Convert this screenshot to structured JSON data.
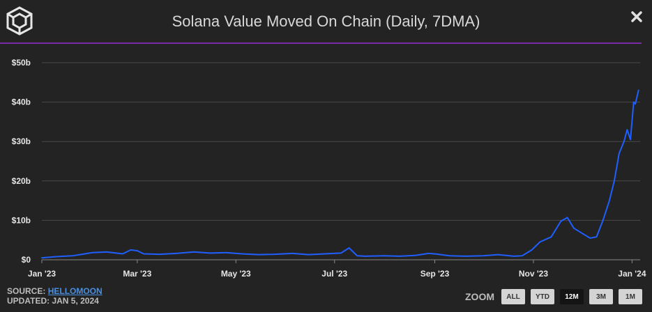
{
  "header": {
    "title": "Solana Value Moved On Chain (Daily, 7DMA)"
  },
  "footer": {
    "source_label": "SOURCE:",
    "source_link": "HELLOMOON",
    "updated": "UPDATED: JAN 5, 2024"
  },
  "zoom": {
    "label": "ZOOM",
    "buttons": [
      "ALL",
      "YTD",
      "12M",
      "3M",
      "1M"
    ],
    "active": "12M"
  },
  "colors": {
    "background": "#232323",
    "line": "#1f5fff",
    "divider": "#7a2aa5",
    "grid": "#4a4a4a"
  },
  "chart_data": {
    "type": "line",
    "title": "Solana Value Moved On Chain (Daily, 7DMA)",
    "x_ticks": [
      "Jan '23",
      "Mar '23",
      "May '23",
      "Jul '23",
      "Sep '23",
      "Nov '23",
      "Jan '24"
    ],
    "y_ticks": [
      "$0",
      "$10b",
      "$20b",
      "$30b",
      "$40b",
      "$50b"
    ],
    "ylim": [
      0,
      50
    ],
    "unit": "billions USD",
    "grid": true,
    "series": [
      {
        "x": [
          "2023-01-01",
          "2023-01-10",
          "2023-01-20",
          "2023-02-01",
          "2023-02-10",
          "2023-02-20",
          "2023-02-25",
          "2023-03-01",
          "2023-03-05",
          "2023-03-15",
          "2023-03-25",
          "2023-04-05",
          "2023-04-15",
          "2023-04-25",
          "2023-05-05",
          "2023-05-15",
          "2023-05-25",
          "2023-06-05",
          "2023-06-15",
          "2023-06-25",
          "2023-07-05",
          "2023-07-10",
          "2023-07-15",
          "2023-07-20",
          "2023-08-01",
          "2023-08-10",
          "2023-08-20",
          "2023-08-28",
          "2023-09-01",
          "2023-09-10",
          "2023-09-20",
          "2023-10-01",
          "2023-10-10",
          "2023-10-20",
          "2023-10-25",
          "2023-10-31",
          "2023-11-05",
          "2023-11-12",
          "2023-11-18",
          "2023-11-22",
          "2023-11-26",
          "2023-12-02",
          "2023-12-06",
          "2023-12-10",
          "2023-12-14",
          "2023-12-18",
          "2023-12-21",
          "2023-12-24",
          "2023-12-27",
          "2023-12-29",
          "2023-12-31",
          "2024-01-02",
          "2024-01-03",
          "2024-01-05"
        ],
        "y": [
          0.5,
          0.8,
          1.0,
          1.8,
          2.0,
          1.5,
          2.5,
          2.3,
          1.5,
          1.4,
          1.6,
          2.0,
          1.7,
          1.8,
          1.5,
          1.3,
          1.4,
          1.6,
          1.3,
          1.5,
          1.7,
          3.0,
          1.0,
          0.9,
          1.0,
          0.9,
          1.1,
          1.6,
          1.5,
          1.0,
          0.9,
          1.0,
          1.3,
          0.9,
          1.0,
          2.5,
          4.5,
          5.8,
          9.8,
          10.7,
          8.0,
          6.5,
          5.5,
          5.8,
          10.0,
          15.0,
          20.0,
          27.0,
          30.0,
          33.0,
          30.5,
          40.0,
          39.5,
          43.0
        ]
      }
    ]
  }
}
